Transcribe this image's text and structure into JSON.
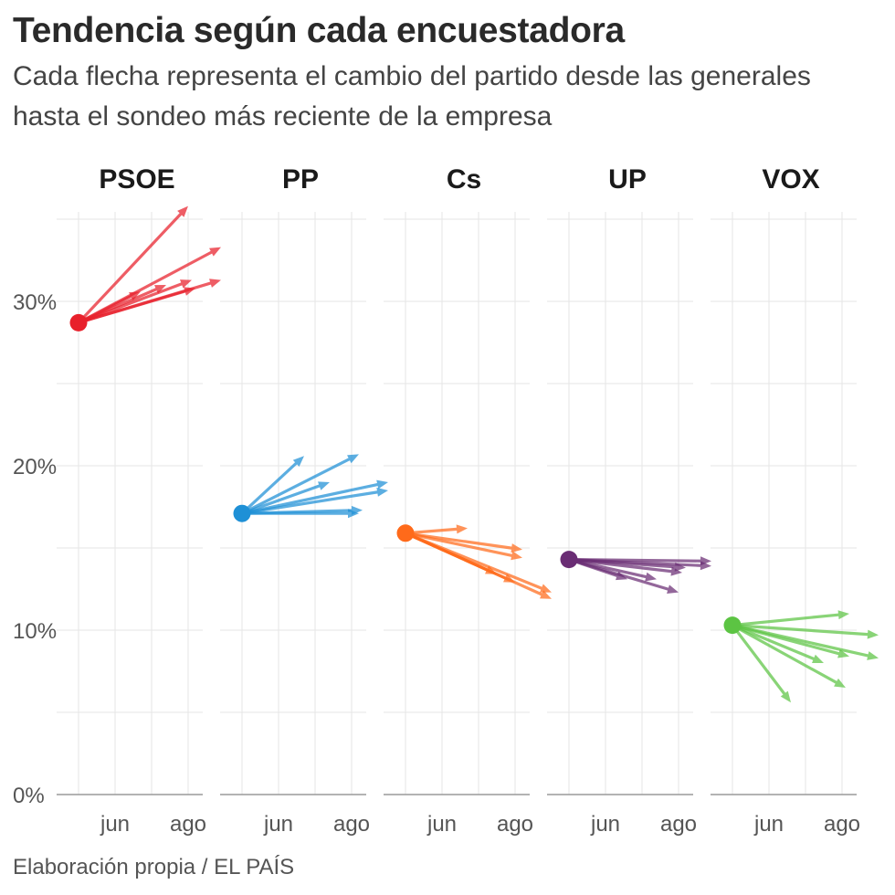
{
  "header": {
    "title": "Tendencia según cada encuestadora",
    "subtitle": "Cada flecha representa el cambio del partido desde las generales hasta el sondeo más reciente de la empresa"
  },
  "footer": {
    "source": "Elaboración propia / EL PAÍS"
  },
  "chart_data": {
    "type": "arrow-small-multiples",
    "title": "Tendencia según cada encuestadora",
    "ylabel": "",
    "ylim": [
      0,
      35
    ],
    "yticks": [
      0,
      10,
      20,
      30
    ],
    "ytick_labels": [
      "0%",
      "10%",
      "20%",
      "30%"
    ],
    "xdomain": [
      -0.6,
      3.4
    ],
    "xticks": [
      1,
      3
    ],
    "xtick_labels": [
      "jun",
      "ago"
    ],
    "start_x": 0,
    "panels": [
      {
        "name": "PSOE",
        "color": "#e8202b",
        "start": 28.7,
        "arrows": [
          {
            "x": 3.0,
            "y": 35.8
          },
          {
            "x": 3.9,
            "y": 33.3
          },
          {
            "x": 3.1,
            "y": 31.3
          },
          {
            "x": 3.9,
            "y": 31.3
          },
          {
            "x": 2.4,
            "y": 31.0
          },
          {
            "x": 1.7,
            "y": 30.6
          },
          {
            "x": 3.2,
            "y": 30.8
          }
        ]
      },
      {
        "name": "PP",
        "color": "#1e90d6",
        "start": 17.1,
        "arrows": [
          {
            "x": 1.7,
            "y": 20.6
          },
          {
            "x": 3.2,
            "y": 20.7
          },
          {
            "x": 2.4,
            "y": 19.0
          },
          {
            "x": 4.0,
            "y": 19.0
          },
          {
            "x": 4.0,
            "y": 18.5
          },
          {
            "x": 3.3,
            "y": 17.3
          },
          {
            "x": 3.2,
            "y": 17.1
          }
        ]
      },
      {
        "name": "Cs",
        "color": "#ff6a1a",
        "start": 15.9,
        "arrows": [
          {
            "x": 1.7,
            "y": 16.2
          },
          {
            "x": 3.2,
            "y": 14.9
          },
          {
            "x": 3.2,
            "y": 14.4
          },
          {
            "x": 2.5,
            "y": 13.4
          },
          {
            "x": 3.0,
            "y": 12.9
          },
          {
            "x": 4.0,
            "y": 12.3
          },
          {
            "x": 4.0,
            "y": 11.9
          }
        ]
      },
      {
        "name": "UP",
        "color": "#6a2d74",
        "start": 14.3,
        "arrows": [
          {
            "x": 3.9,
            "y": 14.2
          },
          {
            "x": 3.9,
            "y": 13.9
          },
          {
            "x": 3.2,
            "y": 13.8
          },
          {
            "x": 3.1,
            "y": 13.5
          },
          {
            "x": 2.4,
            "y": 13.1
          },
          {
            "x": 1.6,
            "y": 13.1
          },
          {
            "x": 3.0,
            "y": 12.3
          }
        ]
      },
      {
        "name": "VOX",
        "color": "#5cc443",
        "start": 10.3,
        "arrows": [
          {
            "x": 3.2,
            "y": 11.0
          },
          {
            "x": 4.0,
            "y": 9.7
          },
          {
            "x": 4.0,
            "y": 8.3
          },
          {
            "x": 3.2,
            "y": 8.4
          },
          {
            "x": 2.5,
            "y": 8.0
          },
          {
            "x": 3.1,
            "y": 6.5
          },
          {
            "x": 1.6,
            "y": 5.6
          }
        ]
      }
    ]
  }
}
